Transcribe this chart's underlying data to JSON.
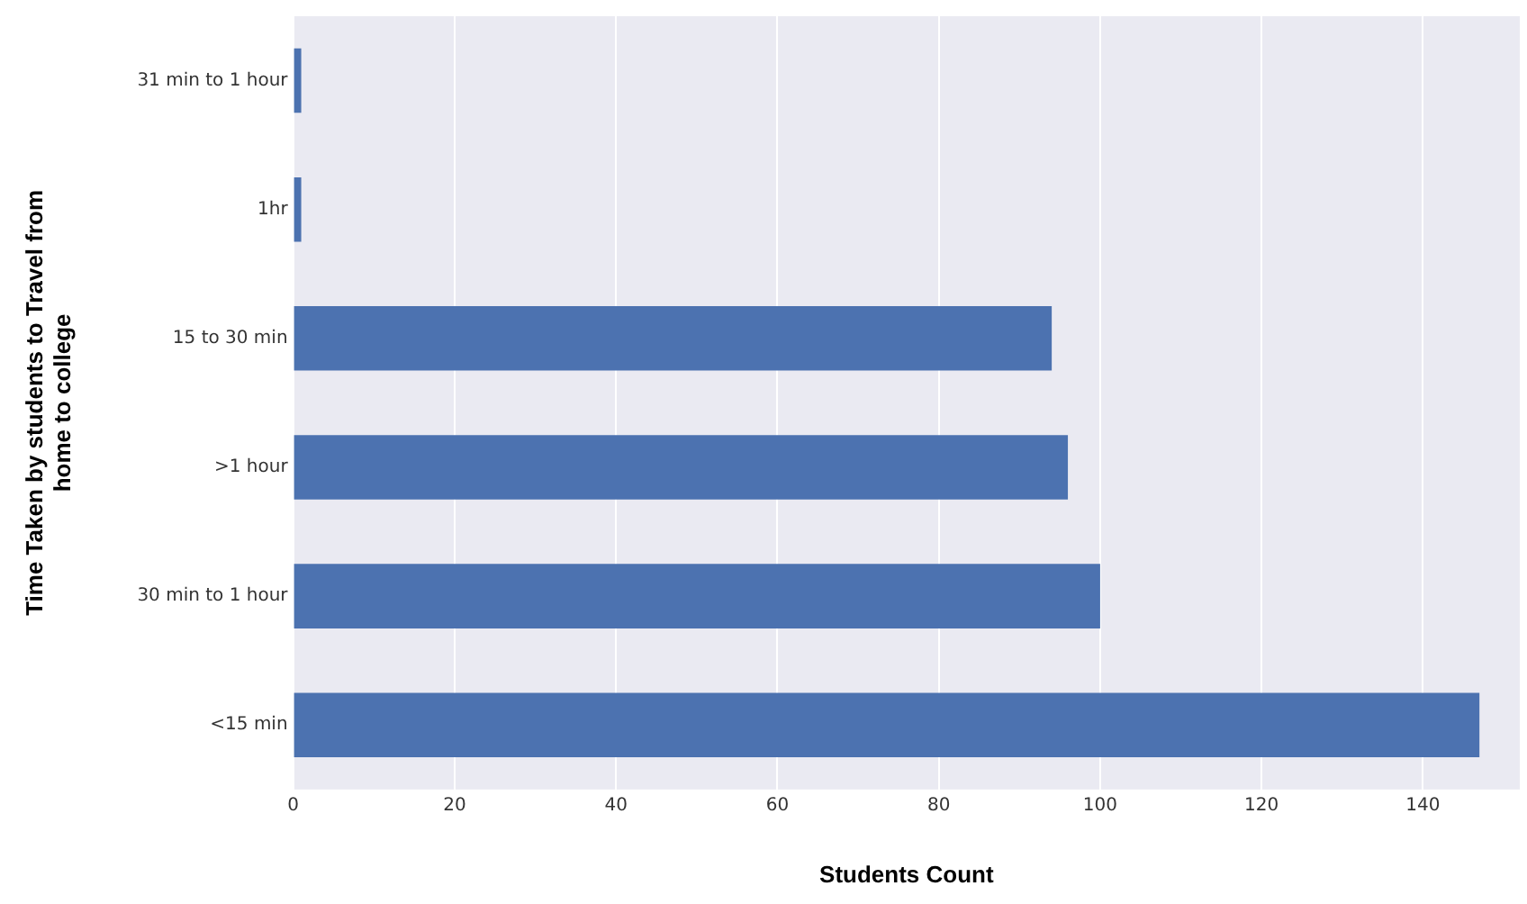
{
  "chart_data": {
    "type": "bar",
    "orientation": "horizontal",
    "xlabel": "Students Count",
    "ylabel": "Time Taken by students to Travel from home to college",
    "categories": [
      "31 min to 1 hour",
      "1hr",
      "15 to 30 min",
      ">1 hour",
      "30 min to 1 hour",
      "<15 min"
    ],
    "values": [
      1,
      1,
      94,
      96,
      100,
      147
    ],
    "color": "#4c72b0",
    "xlim": [
      0,
      152
    ],
    "xticks": [
      0,
      20,
      40,
      60,
      80,
      100,
      120,
      140
    ],
    "grid": "x",
    "legend": false
  }
}
